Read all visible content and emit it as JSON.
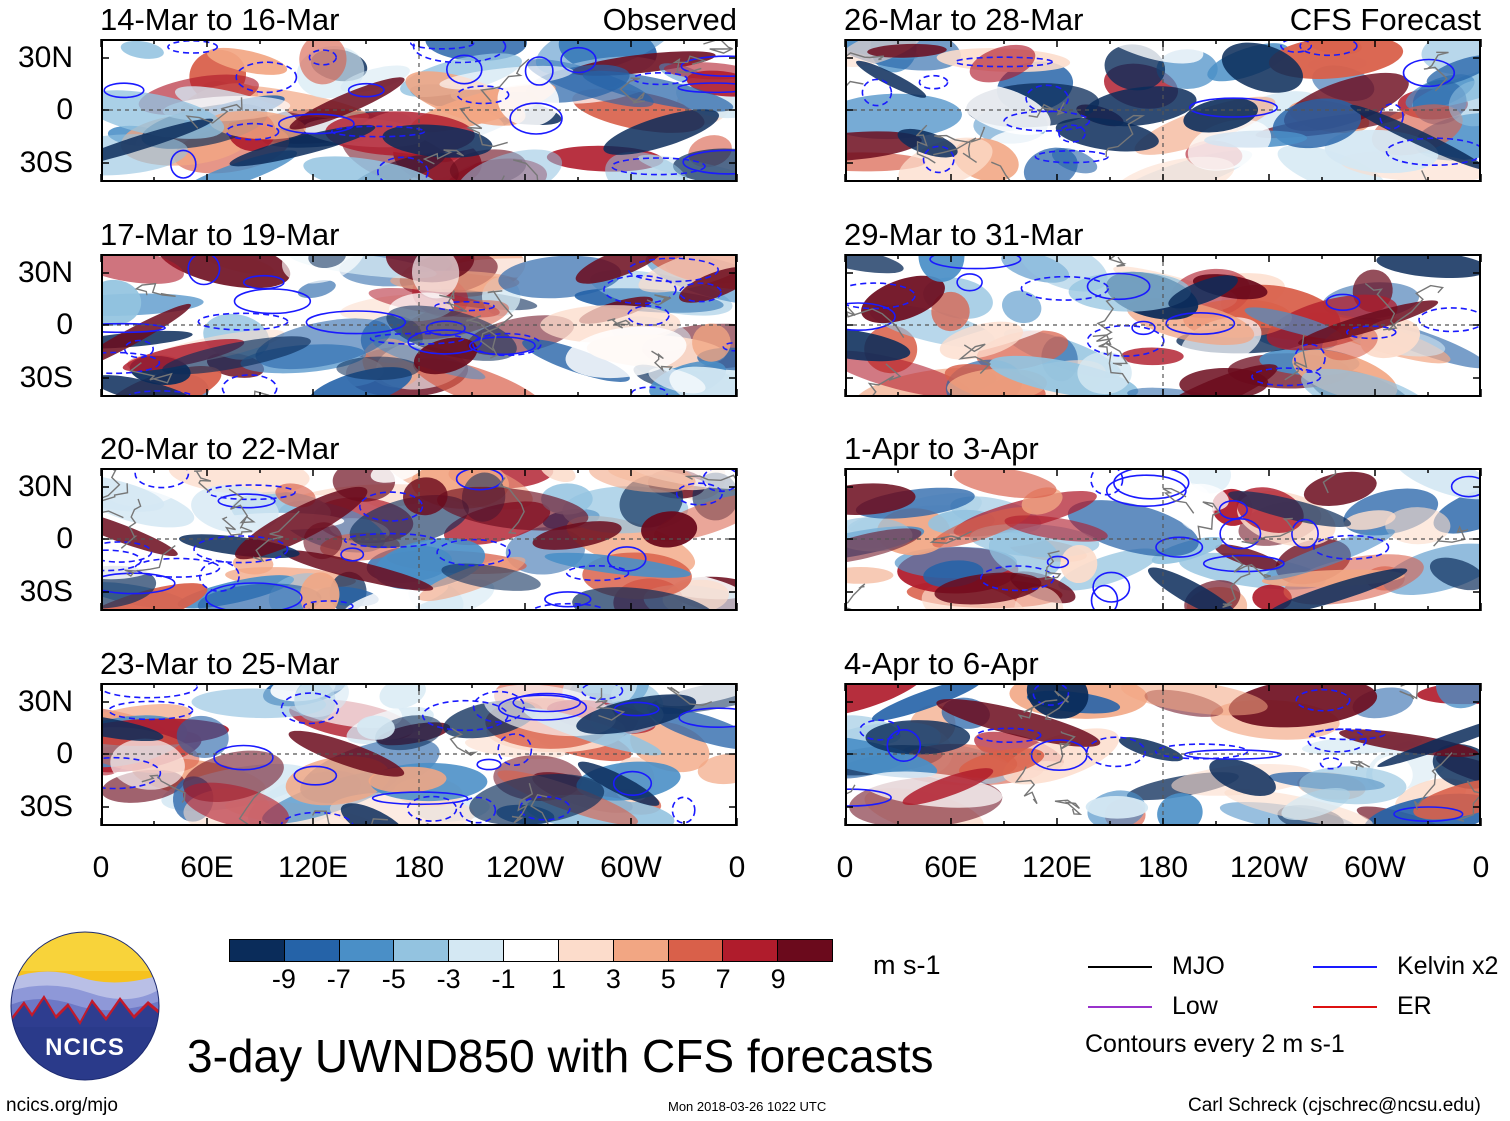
{
  "chart_data": {
    "type": "heatmap",
    "title": "3-day UWND850 with CFS forecasts",
    "variable": "UWND850",
    "units": "m s-1",
    "x_ticks": [
      "0",
      "60E",
      "120E",
      "180",
      "120W",
      "60W",
      "0"
    ],
    "y_ticks": [
      "30N",
      "0",
      "30S"
    ],
    "panels": [
      {
        "label": "14-Mar to 16-Mar",
        "tag": "Observed",
        "column": "left",
        "row": 0
      },
      {
        "label": "17-Mar to 19-Mar",
        "tag": "",
        "column": "left",
        "row": 1
      },
      {
        "label": "20-Mar to 22-Mar",
        "tag": "",
        "column": "left",
        "row": 2
      },
      {
        "label": "23-Mar to 25-Mar",
        "tag": "",
        "column": "left",
        "row": 3
      },
      {
        "label": "26-Mar to 28-Mar",
        "tag": "CFS Forecast",
        "column": "right",
        "row": 0
      },
      {
        "label": "29-Mar to 31-Mar",
        "tag": "",
        "column": "right",
        "row": 1
      },
      {
        "label": "1-Apr to 3-Apr",
        "tag": "",
        "column": "right",
        "row": 2
      },
      {
        "label": "4-Apr to 6-Apr",
        "tag": "",
        "column": "right",
        "row": 3
      }
    ],
    "colorbar": {
      "colors": [
        "#0a2c5a",
        "#2563a8",
        "#4a8fc7",
        "#93c3e0",
        "#d4e8f3",
        "#ffffff",
        "#fcdccb",
        "#f2a683",
        "#d9604a",
        "#b01c2c",
        "#6b0a1c"
      ],
      "tick_labels": [
        "-9",
        "-7",
        "-5",
        "-3",
        "-1",
        "1",
        "3",
        "5",
        "7",
        "9"
      ]
    },
    "legend": [
      {
        "label": "MJO",
        "color": "#000000"
      },
      {
        "label": "Kelvin x2",
        "color": "#1a1aff"
      },
      {
        "label": "Low",
        "color": "#9933cc"
      },
      {
        "label": "ER",
        "color": "#dd1111"
      }
    ],
    "contour_note": "Contours every 2 m s-1"
  },
  "logo": {
    "text": "NCICS"
  },
  "footer": {
    "left": "ncics.org/mjo",
    "center": "Mon 2018-03-26 1022 UTC",
    "right": "Carl Schreck (cjschrec@ncsu.edu)"
  }
}
